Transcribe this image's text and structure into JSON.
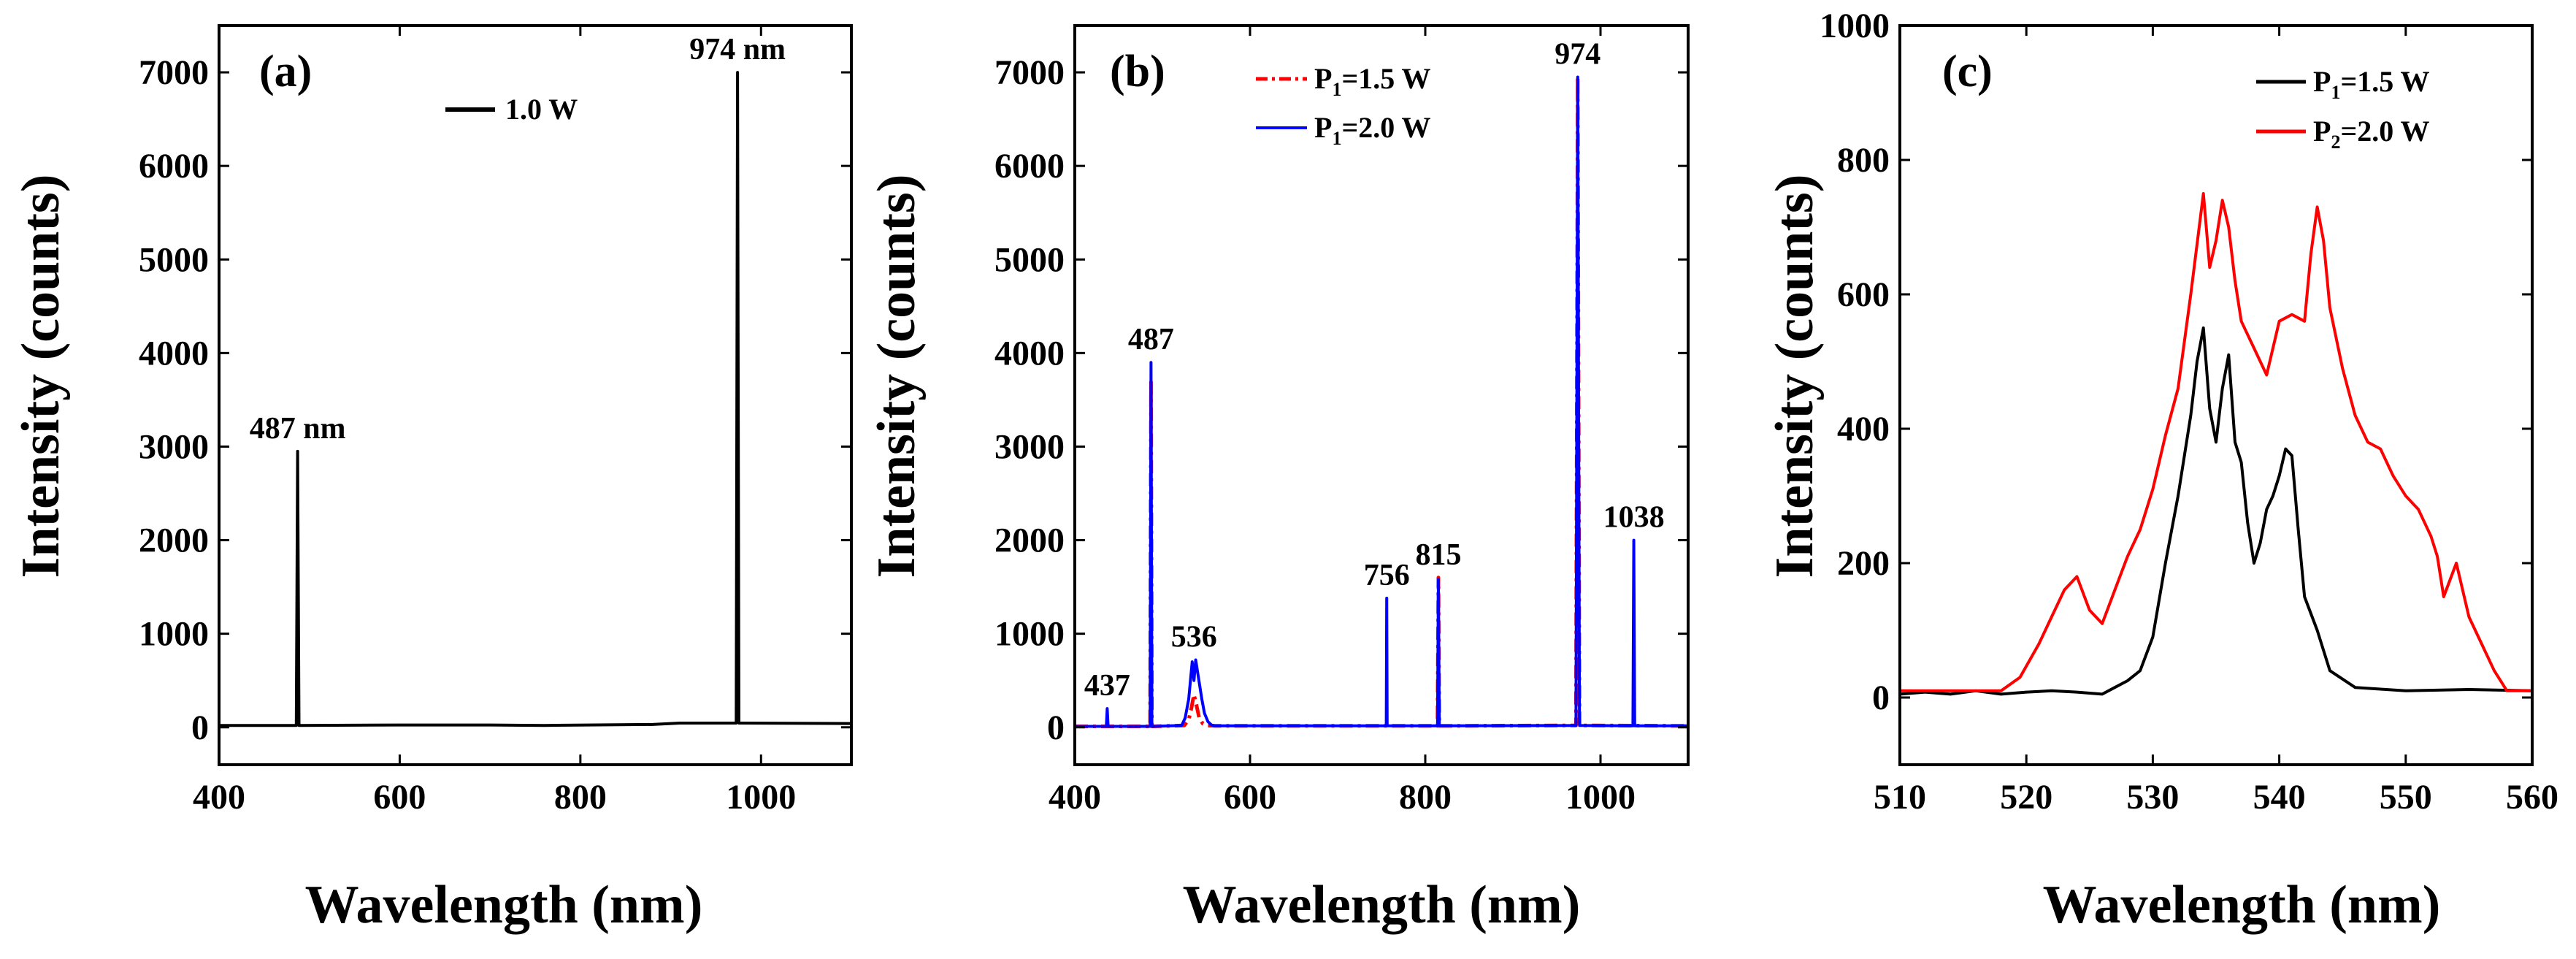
{
  "colors": {
    "black": "#000000",
    "red": "#ff0000",
    "blue": "#0000ff"
  },
  "chart_data": [
    {
      "type": "line",
      "panel_label": "(a)",
      "xlabel": "Wavelength (nm)",
      "ylabel": "Intensity (counts)",
      "xlim": [
        400,
        1100
      ],
      "ylim": [
        -400,
        7500
      ],
      "xticks": [
        "400",
        "600",
        "800",
        "1000"
      ],
      "yticks": [
        "0",
        "1000",
        "2000",
        "3000",
        "4000",
        "5000",
        "6000",
        "7000"
      ],
      "legend": [
        "1.0 W"
      ],
      "series": [
        {
          "name": "1.0 W",
          "color": "#000000",
          "style": "solid",
          "x": [
            400,
            484,
            485.5,
            487,
            488.5,
            490,
            600,
            700,
            760,
            880,
            910,
            971,
            972.5,
            974,
            975.5,
            977,
            1100
          ],
          "y": [
            20,
            20,
            20,
            2950,
            20,
            20,
            25,
            25,
            20,
            30,
            45,
            45,
            45,
            7000,
            45,
            45,
            40
          ]
        }
      ],
      "annotations": [
        {
          "text": "487 nm",
          "x": 487,
          "y": 2950
        },
        {
          "text": "974 nm",
          "x": 974,
          "y": 7000
        }
      ]
    },
    {
      "type": "line",
      "panel_label": "(b)",
      "xlabel": "Wavelength (nm)",
      "ylabel": "Intensity (counts)",
      "xlim": [
        400,
        1100
      ],
      "ylim": [
        -400,
        7500
      ],
      "xticks": [
        "400",
        "600",
        "800",
        "1000"
      ],
      "yticks": [
        "0",
        "1000",
        "2000",
        "3000",
        "4000",
        "5000",
        "6000",
        "7000"
      ],
      "legend": [
        {
          "main": "P",
          "sub": "1",
          "rest": "=1.5 W"
        },
        {
          "main": "P",
          "sub": "1",
          "rest": "=2.0 W"
        }
      ],
      "series": [
        {
          "name": "P1=1.5 W",
          "color": "#ff0000",
          "style": "dashdot",
          "x": [
            400,
            485,
            486,
            487,
            488,
            489,
            525,
            530,
            533,
            536,
            539,
            542,
            546,
            550,
            560,
            600,
            812,
            814,
            815,
            816,
            818,
            971,
            972,
            974,
            976,
            977,
            1100
          ],
          "y": [
            10,
            10,
            10,
            3700,
            10,
            10,
            20,
            80,
            200,
            350,
            230,
            100,
            40,
            20,
            15,
            15,
            15,
            15,
            1600,
            15,
            15,
            20,
            20,
            6950,
            20,
            20,
            15
          ]
        },
        {
          "name": "P1=2.0 W",
          "color": "#0000ff",
          "style": "solid",
          "x": [
            400,
            436,
            437,
            438,
            485,
            486,
            487,
            488,
            489,
            522,
            526,
            530,
            534,
            536,
            538,
            540,
            542,
            545,
            548,
            552,
            556,
            560,
            600,
            754,
            755.5,
            756,
            756.5,
            758,
            812,
            814,
            815,
            816,
            818,
            971,
            972,
            974,
            976,
            977,
            1036,
            1037,
            1038,
            1039,
            1040,
            1100
          ],
          "y": [
            10,
            10,
            200,
            10,
            10,
            10,
            3900,
            10,
            10,
            20,
            100,
            300,
            700,
            500,
            720,
            600,
            480,
            300,
            150,
            60,
            25,
            15,
            15,
            15,
            15,
            1380,
            15,
            15,
            15,
            15,
            1580,
            15,
            15,
            20,
            20,
            6950,
            20,
            20,
            15,
            15,
            2000,
            15,
            15,
            15
          ]
        }
      ],
      "annotations": [
        {
          "text": "437",
          "x": 437,
          "y": 200
        },
        {
          "text": "487",
          "x": 487,
          "y": 3900
        },
        {
          "text": "536",
          "x": 536,
          "y": 720
        },
        {
          "text": "756",
          "x": 756,
          "y": 1380
        },
        {
          "text": "815",
          "x": 815,
          "y": 1600
        },
        {
          "text": "974",
          "x": 974,
          "y": 6950
        },
        {
          "text": "1038",
          "x": 1038,
          "y": 2000
        }
      ]
    },
    {
      "type": "line",
      "panel_label": "(c)",
      "xlabel": "Wavelength (nm)",
      "ylabel": "Intensity (counts)",
      "xlim": [
        510,
        560
      ],
      "ylim": [
        -100,
        1000
      ],
      "xticks": [
        "510",
        "520",
        "530",
        "540",
        "550",
        "560"
      ],
      "yticks": [
        "0",
        "200",
        "400",
        "600",
        "800",
        "1000"
      ],
      "legend": [
        {
          "main": "P",
          "sub": "1",
          "rest": "=1.5 W"
        },
        {
          "main": "P",
          "sub": "2",
          "rest": "=2.0 W"
        }
      ],
      "series": [
        {
          "name": "P1=1.5 W",
          "color": "#000000",
          "style": "solid",
          "x": [
            510,
            512,
            514,
            516,
            518,
            520,
            522,
            524,
            526,
            527,
            528,
            529,
            530,
            531,
            532,
            533,
            533.5,
            534,
            534.5,
            535,
            535.5,
            536,
            536.5,
            537,
            537.5,
            538,
            538.5,
            539,
            539.5,
            540,
            540.5,
            541,
            541.5,
            542,
            543,
            544,
            546,
            550,
            555,
            560
          ],
          "y": [
            5,
            8,
            5,
            10,
            5,
            8,
            10,
            8,
            5,
            15,
            25,
            40,
            90,
            200,
            300,
            420,
            500,
            550,
            430,
            380,
            460,
            510,
            380,
            350,
            260,
            200,
            230,
            280,
            300,
            330,
            370,
            360,
            250,
            150,
            100,
            40,
            15,
            10,
            12,
            10
          ]
        },
        {
          "name": "P2=2.0 W",
          "color": "#ff0000",
          "style": "solid",
          "x": [
            510,
            514,
            518,
            519.5,
            521,
            522,
            523,
            524,
            525,
            526,
            527,
            528,
            529,
            530,
            531,
            532,
            533,
            534,
            534.5,
            535,
            535.5,
            536,
            536.5,
            537,
            538,
            539,
            540,
            541,
            542,
            542.5,
            543,
            543.5,
            544,
            545,
            546,
            547,
            548,
            549,
            550,
            551,
            552,
            552.5,
            553,
            554,
            555,
            556,
            557,
            558,
            560
          ],
          "y": [
            10,
            10,
            10,
            30,
            80,
            120,
            160,
            180,
            130,
            110,
            160,
            210,
            250,
            310,
            390,
            460,
            600,
            750,
            640,
            680,
            740,
            700,
            620,
            560,
            520,
            480,
            560,
            570,
            560,
            660,
            730,
            680,
            580,
            490,
            420,
            380,
            370,
            330,
            300,
            280,
            240,
            210,
            150,
            200,
            120,
            80,
            40,
            10,
            10
          ]
        }
      ]
    }
  ]
}
